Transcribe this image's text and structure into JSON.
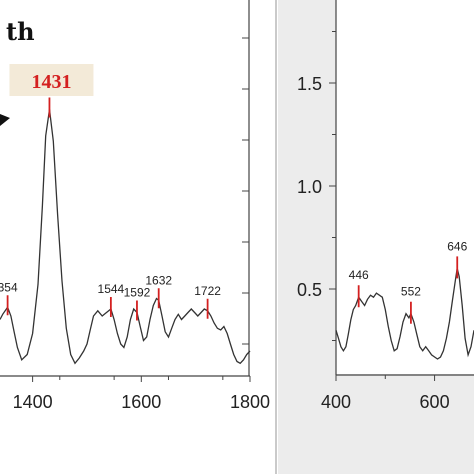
{
  "partial_title": "th",
  "chart_data": [
    {
      "type": "line",
      "xlabel": "",
      "ylabel": "",
      "xlim": [
        1340,
        1800
      ],
      "x_ticks": [
        1400,
        1600,
        1800
      ],
      "x_tick_labels": [
        "1400",
        "1600",
        "1800"
      ],
      "series": [
        {
          "x": [
            1340,
            1345,
            1354,
            1360,
            1366,
            1372,
            1380,
            1390,
            1400,
            1410,
            1418,
            1424,
            1431,
            1438,
            1446,
            1454,
            1462,
            1470,
            1478,
            1486,
            1494,
            1500,
            1506,
            1512,
            1520,
            1528,
            1536,
            1544,
            1550,
            1556,
            1562,
            1568,
            1574,
            1580,
            1586,
            1592,
            1598,
            1604,
            1610,
            1616,
            1622,
            1628,
            1632,
            1638,
            1644,
            1650,
            1656,
            1662,
            1668,
            1674,
            1680,
            1686,
            1692,
            1698,
            1704,
            1710,
            1716,
            1722,
            1728,
            1734,
            1740,
            1746,
            1752,
            1758,
            1764,
            1770,
            1776,
            1782,
            1788,
            1794,
            1800
          ],
          "y": [
            0.4,
            0.43,
            0.47,
            0.42,
            0.33,
            0.24,
            0.17,
            0.2,
            0.32,
            0.6,
            1.05,
            1.45,
            1.6,
            1.42,
            1.0,
            0.62,
            0.35,
            0.2,
            0.15,
            0.18,
            0.22,
            0.26,
            0.34,
            0.42,
            0.45,
            0.42,
            0.44,
            0.46,
            0.4,
            0.32,
            0.26,
            0.24,
            0.3,
            0.4,
            0.46,
            0.44,
            0.36,
            0.28,
            0.3,
            0.4,
            0.48,
            0.52,
            0.51,
            0.42,
            0.33,
            0.3,
            0.35,
            0.4,
            0.43,
            0.4,
            0.42,
            0.44,
            0.46,
            0.44,
            0.42,
            0.44,
            0.46,
            0.45,
            0.42,
            0.38,
            0.35,
            0.34,
            0.36,
            0.32,
            0.26,
            0.2,
            0.16,
            0.15,
            0.17,
            0.2,
            0.22
          ]
        }
      ],
      "annotations": [
        {
          "label": "354",
          "x": 1354
        },
        {
          "label": "1431",
          "x": 1431,
          "highlight": true
        },
        {
          "label": "1544",
          "x": 1544
        },
        {
          "label": "1592",
          "x": 1592
        },
        {
          "label": "1632",
          "x": 1632
        },
        {
          "label": "1722",
          "x": 1722
        }
      ]
    },
    {
      "type": "line",
      "xlabel": "",
      "ylabel": "",
      "xlim": [
        400,
        680
      ],
      "ylim": [
        0.15,
        1.8
      ],
      "x_ticks": [
        400,
        600
      ],
      "x_tick_labels": [
        "400",
        "600"
      ],
      "y_ticks": [
        0.5,
        1.0,
        1.5
      ],
      "y_tick_labels": [
        "0.5",
        "1.0",
        "1.5"
      ],
      "series": [
        {
          "x": [
            400,
            405,
            410,
            415,
            420,
            425,
            430,
            435,
            440,
            446,
            452,
            458,
            464,
            470,
            476,
            482,
            488,
            494,
            500,
            506,
            512,
            518,
            524,
            530,
            536,
            542,
            548,
            552,
            558,
            564,
            570,
            576,
            582,
            588,
            594,
            600,
            606,
            612,
            618,
            624,
            630,
            636,
            642,
            646,
            650,
            656,
            662,
            668,
            674,
            680
          ],
          "y": [
            0.3,
            0.26,
            0.22,
            0.2,
            0.22,
            0.28,
            0.35,
            0.4,
            0.42,
            0.46,
            0.44,
            0.42,
            0.45,
            0.47,
            0.46,
            0.48,
            0.47,
            0.46,
            0.4,
            0.32,
            0.25,
            0.2,
            0.21,
            0.27,
            0.34,
            0.38,
            0.36,
            0.38,
            0.34,
            0.28,
            0.22,
            0.2,
            0.22,
            0.2,
            0.18,
            0.17,
            0.16,
            0.17,
            0.2,
            0.26,
            0.34,
            0.44,
            0.54,
            0.6,
            0.56,
            0.42,
            0.26,
            0.18,
            0.22,
            0.3
          ]
        }
      ],
      "annotations": [
        {
          "label": "446",
          "x": 446
        },
        {
          "label": "552",
          "x": 552
        },
        {
          "label": "646",
          "x": 646
        }
      ]
    }
  ]
}
